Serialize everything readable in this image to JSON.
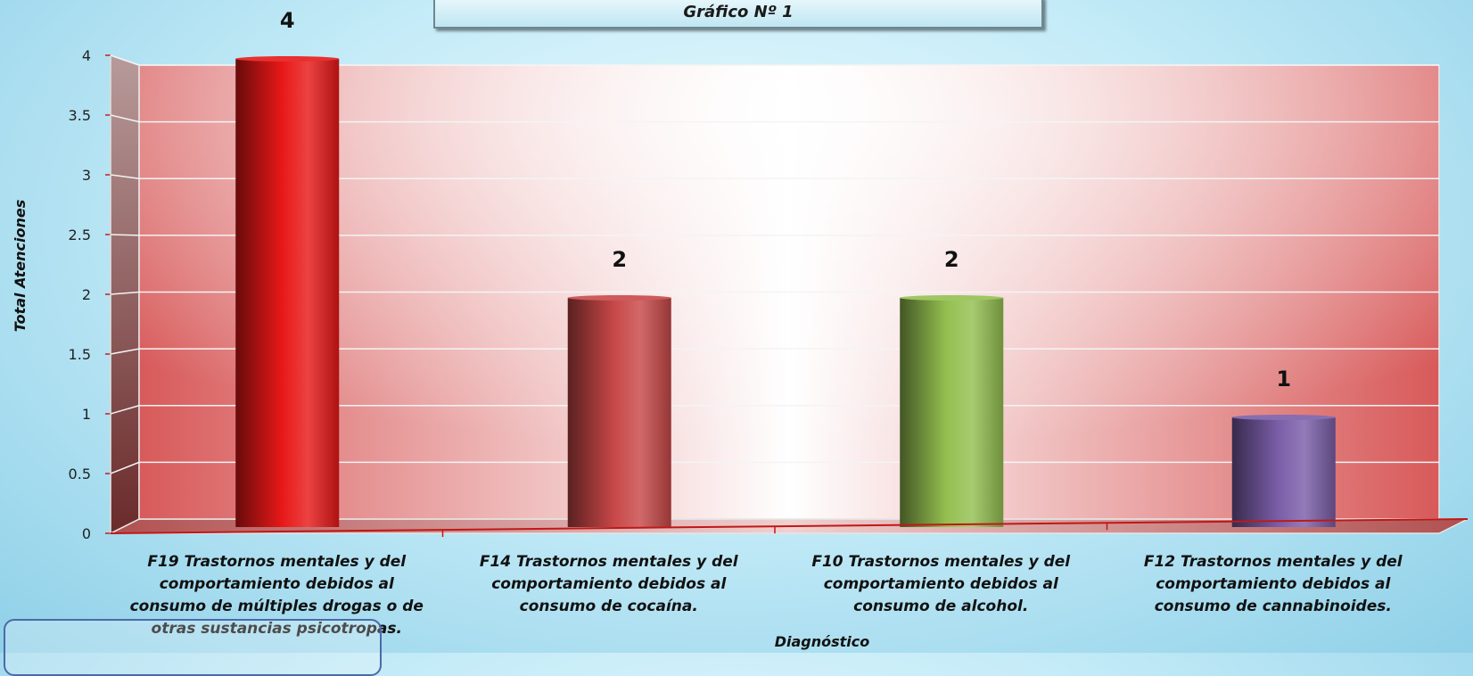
{
  "chart_data": {
    "type": "bar",
    "title": "Gráfico Nº 1",
    "xlabel": "Diagnóstico",
    "ylabel": "Total Atenciones",
    "ylim": [
      0,
      4
    ],
    "y_ticks": [
      "0",
      "0.5",
      "1",
      "1.5",
      "2",
      "2.5",
      "3",
      "3.5",
      "4"
    ],
    "grid": true,
    "categories": [
      "F19 Trastornos mentales y del comportamiento debidos al consumo de múltiples drogas o de otras sustancias psicotropas.",
      "F14 Trastornos mentales y del comportamiento debidos al consumo de cocaína.",
      "F10 Trastornos mentales y del comportamiento debidos al consumo de alcohol.",
      "F12 Trastornos mentales y del comportamiento debidos al consumo de cannabinoides."
    ],
    "values": [
      4,
      2,
      2,
      1
    ],
    "data_labels": [
      "4",
      "2",
      "2",
      "1"
    ],
    "bar_colors": [
      "#e81818",
      "#c84848",
      "#94c050",
      "#7a5ea8"
    ]
  }
}
